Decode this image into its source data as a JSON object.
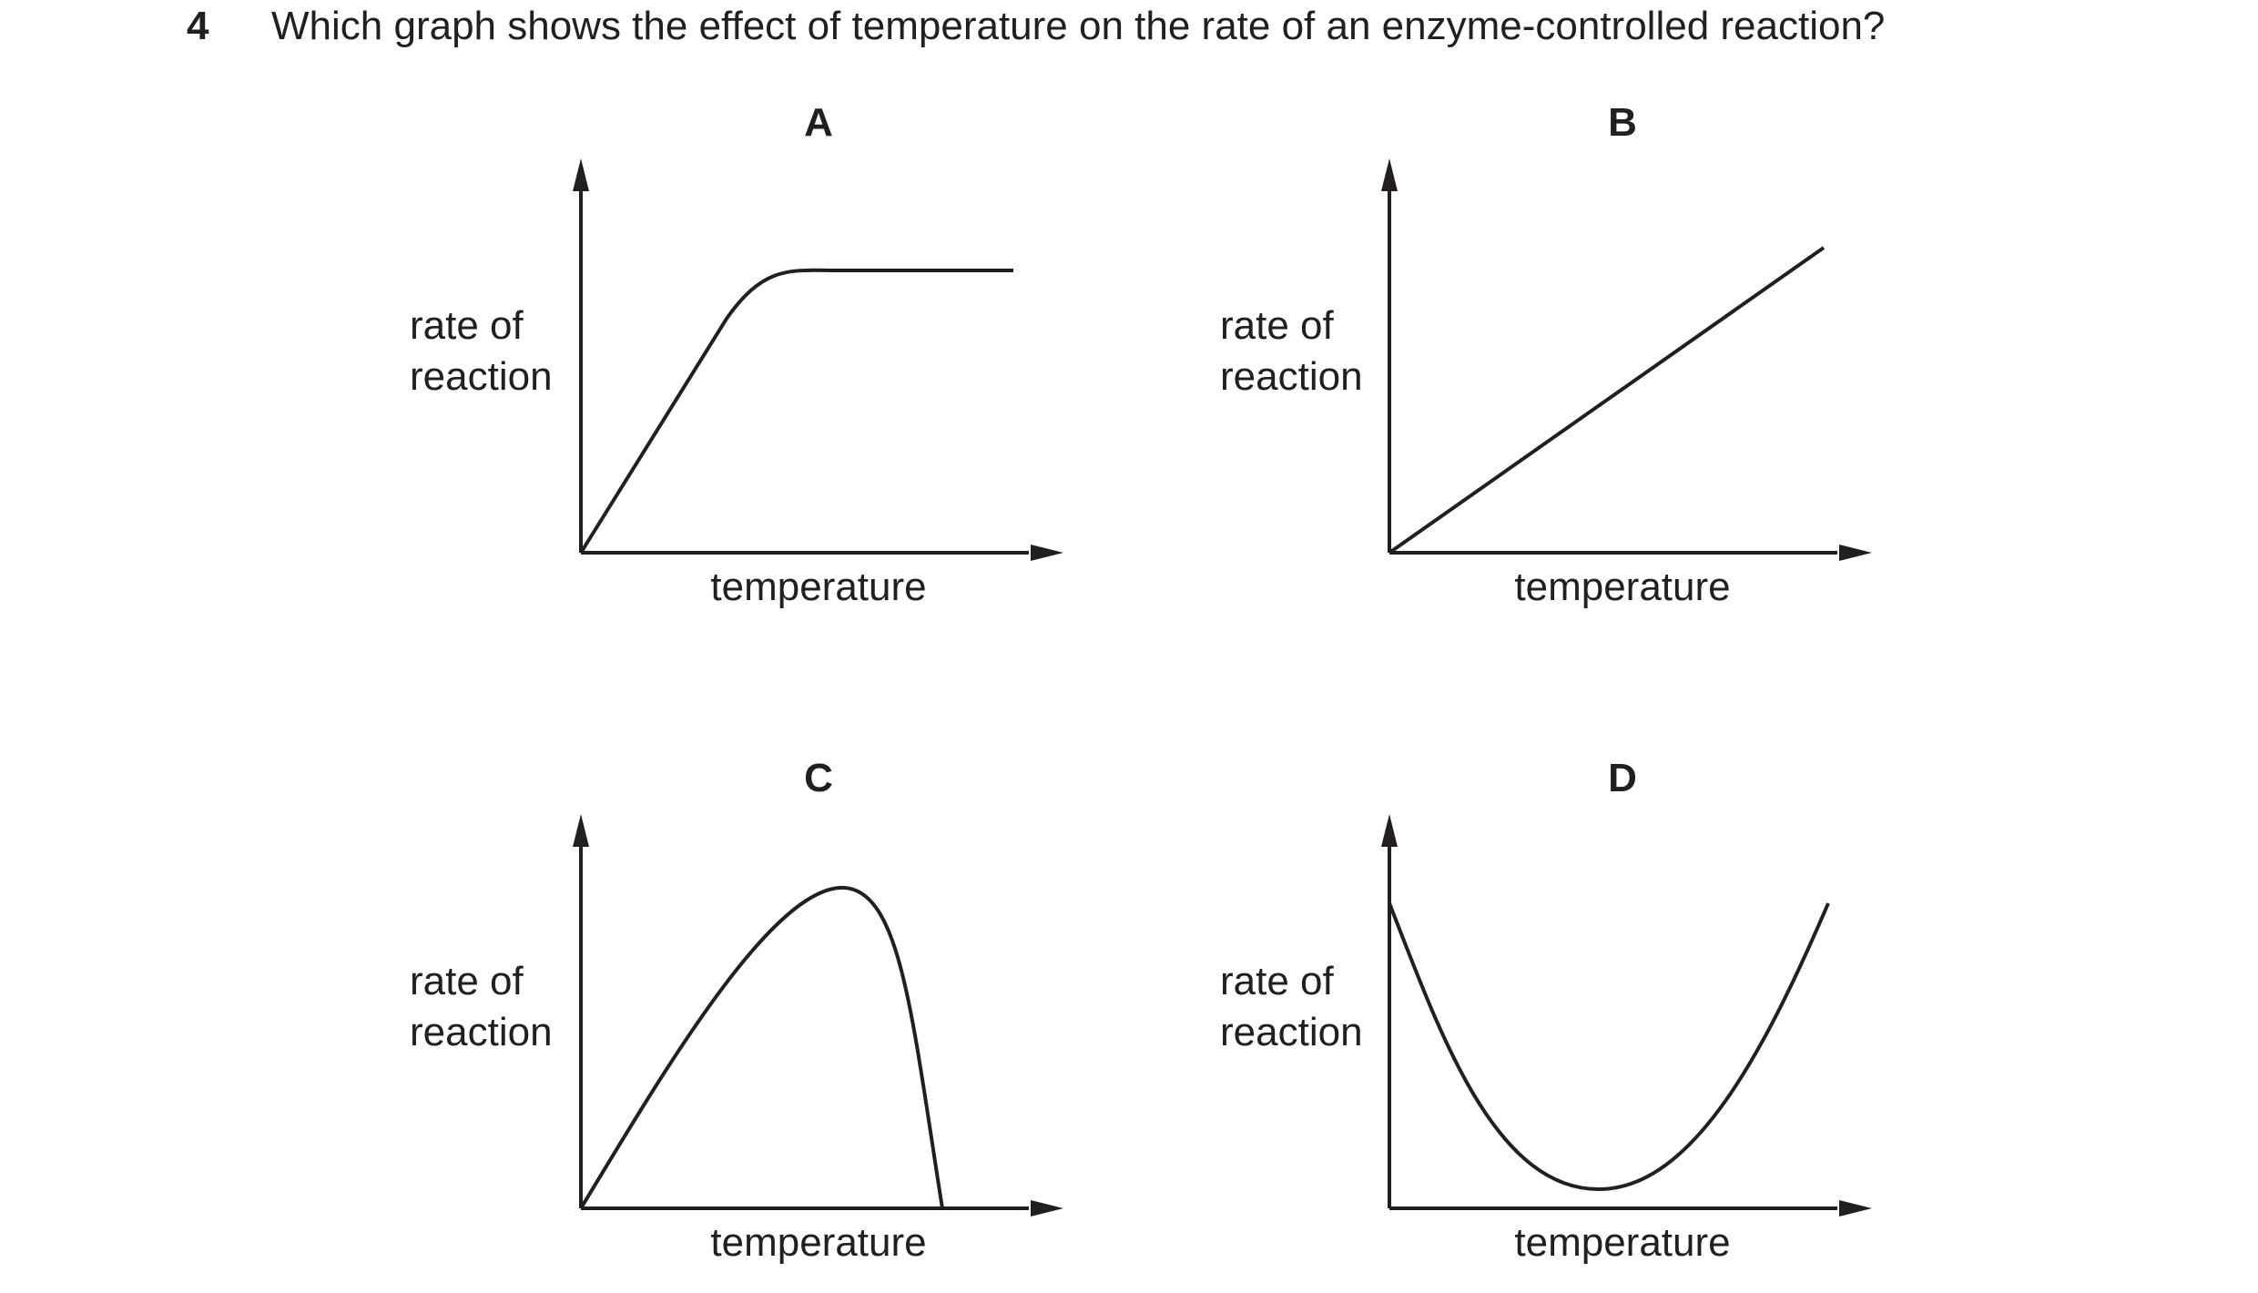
{
  "question": {
    "number": "4",
    "text": "Which graph shows the effect of temperature on the rate of an enzyme-controlled reaction?"
  },
  "graphs": [
    {
      "letter": "A",
      "ylabel_line1": "rate of",
      "ylabel_line2": "reaction",
      "xlabel": "temperature",
      "shape": "rise-then-plateau"
    },
    {
      "letter": "B",
      "ylabel_line1": "rate of",
      "ylabel_line2": "reaction",
      "xlabel": "temperature",
      "shape": "straight-line-increase"
    },
    {
      "letter": "C",
      "ylabel_line1": "rate of",
      "ylabel_line2": "reaction",
      "xlabel": "temperature",
      "shape": "rise-to-peak-then-sharp-fall"
    },
    {
      "letter": "D",
      "ylabel_line1": "rate of",
      "ylabel_line2": "reaction",
      "xlabel": "temperature",
      "shape": "u-shaped-curve"
    }
  ]
}
